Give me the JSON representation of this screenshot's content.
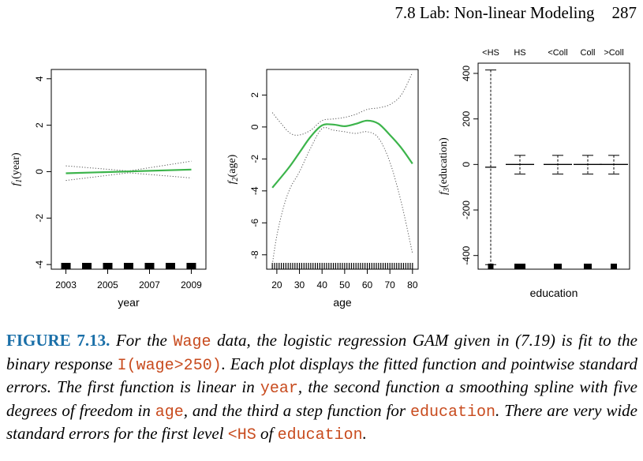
{
  "header": {
    "section": "7.8 Lab: Non-linear Modeling",
    "page": "287"
  },
  "figure": {
    "label": "FIGURE 7.13.",
    "caption": [
      {
        "t": " For the "
      },
      {
        "c": "Wage"
      },
      {
        "t": " data, the logistic regression GAM given in (7.19) is fit to the binary response "
      },
      {
        "c": "I(wage>250)"
      },
      {
        "t": ". Each plot displays the fitted function and pointwise standard errors. The first function is linear in "
      },
      {
        "c": "year"
      },
      {
        "t": ", the second function a smoothing spline with five degrees of freedom in "
      },
      {
        "c": "age"
      },
      {
        "t": ", and the third a step function for "
      },
      {
        "c": "education"
      },
      {
        "t": ". There are very wide standard errors for the first level "
      },
      {
        "c": "<HS"
      },
      {
        "t": " of "
      },
      {
        "c": "education"
      },
      {
        "t": "."
      }
    ]
  },
  "colors": {
    "fit": "#3cb44b",
    "band": "#555555",
    "label": "#1a6fa8",
    "code": "#c84b1e"
  },
  "chart_data": [
    {
      "type": "line",
      "xlabel": "year",
      "ylabel": "f1(year)",
      "xticks": [
        2003,
        2005,
        2007,
        2009
      ],
      "yticks": [
        -4,
        -2,
        0,
        2,
        4
      ],
      "xlim": [
        2002.3,
        2009.7
      ],
      "ylim": [
        -4.2,
        4.4
      ],
      "series": [
        {
          "role": "fit",
          "x": [
            2003,
            2009
          ],
          "y": [
            -0.07,
            0.09
          ]
        },
        {
          "role": "upper-se",
          "x": [
            2003,
            2006,
            2009
          ],
          "y": [
            0.25,
            0.03,
            0.45
          ]
        },
        {
          "role": "lower-se",
          "x": [
            2003,
            2006,
            2009
          ],
          "y": [
            -0.38,
            -0.05,
            -0.27
          ]
        }
      ],
      "rug": [
        2003,
        2004,
        2005,
        2006,
        2007,
        2008,
        2009
      ]
    },
    {
      "type": "line",
      "xlabel": "age",
      "ylabel": "f2(age)",
      "xticks": [
        20,
        30,
        40,
        50,
        60,
        70,
        80
      ],
      "yticks": [
        -8,
        -6,
        -4,
        -2,
        0,
        2
      ],
      "xlim": [
        15.5,
        82.5
      ],
      "ylim": [
        -8.9,
        3.6
      ],
      "series": [
        {
          "role": "fit",
          "x": [
            18,
            25,
            30,
            35,
            40,
            45,
            50,
            55,
            60,
            65,
            70,
            75,
            80
          ],
          "y": [
            -3.8,
            -2.6,
            -1.6,
            -0.6,
            0.1,
            0.15,
            0.05,
            0.2,
            0.4,
            0.2,
            -0.5,
            -1.3,
            -2.3
          ]
        },
        {
          "role": "upper-se",
          "x": [
            18,
            22,
            26,
            30,
            35,
            40,
            45,
            50,
            55,
            60,
            65,
            70,
            75,
            80
          ],
          "y": [
            0.9,
            0.2,
            -0.4,
            -0.5,
            -0.2,
            0.4,
            0.5,
            0.6,
            0.8,
            1.1,
            1.2,
            1.4,
            2.0,
            3.4
          ]
        },
        {
          "role": "lower-se",
          "x": [
            18,
            20,
            23,
            26,
            30,
            35,
            40,
            45,
            50,
            55,
            60,
            65,
            70,
            75,
            80
          ],
          "y": [
            -8.6,
            -6.8,
            -5.0,
            -3.8,
            -2.8,
            -1.3,
            -0.1,
            -0.2,
            -0.3,
            -0.4,
            -0.3,
            -0.7,
            -2.2,
            -4.7,
            -7.9
          ]
        }
      ],
      "rug_range": [
        18,
        80
      ]
    },
    {
      "type": "step",
      "xlabel": "education",
      "ylabel": "f3(education)",
      "categories": [
        "<HS",
        "HS",
        "<Coll",
        "Coll",
        ">Coll"
      ],
      "yticks": [
        -400,
        -200,
        0,
        200,
        400
      ],
      "ylim": [
        -460,
        445
      ],
      "values": [
        -12,
        0,
        0,
        0,
        0
      ],
      "upper_se": [
        415,
        40,
        40,
        40,
        40
      ],
      "lower_se": [
        -440,
        -42,
        -42,
        -42,
        -42
      ]
    }
  ]
}
